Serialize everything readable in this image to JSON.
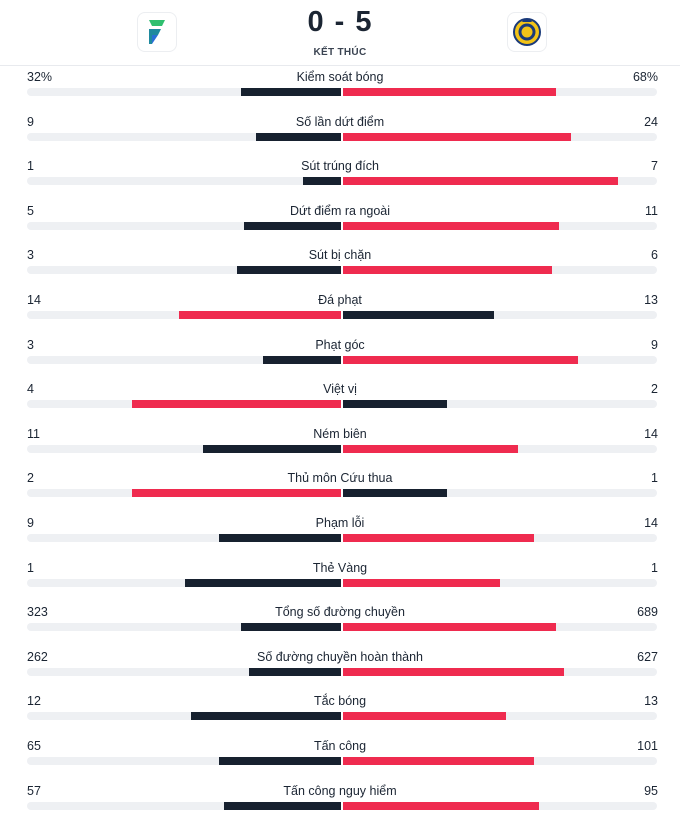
{
  "match": {
    "home_score": "0",
    "separator": "-",
    "away_score": "5",
    "status": "KẾT THÚC",
    "home_icon": "fortuna-f-logo-icon",
    "away_icon": "al-nassr-crest-icon",
    "colors": {
      "dark": "#17212f",
      "red": "#ef2b4f",
      "track": "#eef0f3"
    }
  },
  "stats": [
    {
      "label": "Kiểm soát bóng",
      "home": "32%",
      "away": "68%",
      "home_value": 32,
      "away_value": 68
    },
    {
      "label": "Số lần dứt điểm",
      "home": "9",
      "away": "24",
      "home_value": 9,
      "away_value": 24
    },
    {
      "label": "Sút trúng đích",
      "home": "1",
      "away": "7",
      "home_value": 1,
      "away_value": 7
    },
    {
      "label": "Dứt điểm ra ngoài",
      "home": "5",
      "away": "11",
      "home_value": 5,
      "away_value": 11
    },
    {
      "label": "Sút bị chặn",
      "home": "3",
      "away": "6",
      "home_value": 3,
      "away_value": 6
    },
    {
      "label": "Đá phạt",
      "home": "14",
      "away": "13",
      "home_value": 14,
      "away_value": 13
    },
    {
      "label": "Phạt góc",
      "home": "3",
      "away": "9",
      "home_value": 3,
      "away_value": 9
    },
    {
      "label": "Việt vị",
      "home": "4",
      "away": "2",
      "home_value": 4,
      "away_value": 2
    },
    {
      "label": "Ném biên",
      "home": "11",
      "away": "14",
      "home_value": 11,
      "away_value": 14
    },
    {
      "label": "Thủ môn Cứu thua",
      "home": "2",
      "away": "1",
      "home_value": 2,
      "away_value": 1
    },
    {
      "label": "Phạm lỗi",
      "home": "9",
      "away": "14",
      "home_value": 9,
      "away_value": 14
    },
    {
      "label": "Thẻ Vàng",
      "home": "1",
      "away": "1",
      "home_value": 1,
      "away_value": 1
    },
    {
      "label": "Tổng số đường chuyền",
      "home": "323",
      "away": "689",
      "home_value": 323,
      "away_value": 689
    },
    {
      "label": "Số đường chuyền hoàn thành",
      "home": "262",
      "away": "627",
      "home_value": 262,
      "away_value": 627
    },
    {
      "label": "Tắc bóng",
      "home": "12",
      "away": "13",
      "home_value": 12,
      "away_value": 13
    },
    {
      "label": "Tấn công",
      "home": "65",
      "away": "101",
      "home_value": 65,
      "away_value": 101
    },
    {
      "label": "Tấn công nguy hiểm",
      "home": "57",
      "away": "95",
      "home_value": 57,
      "away_value": 95
    }
  ]
}
